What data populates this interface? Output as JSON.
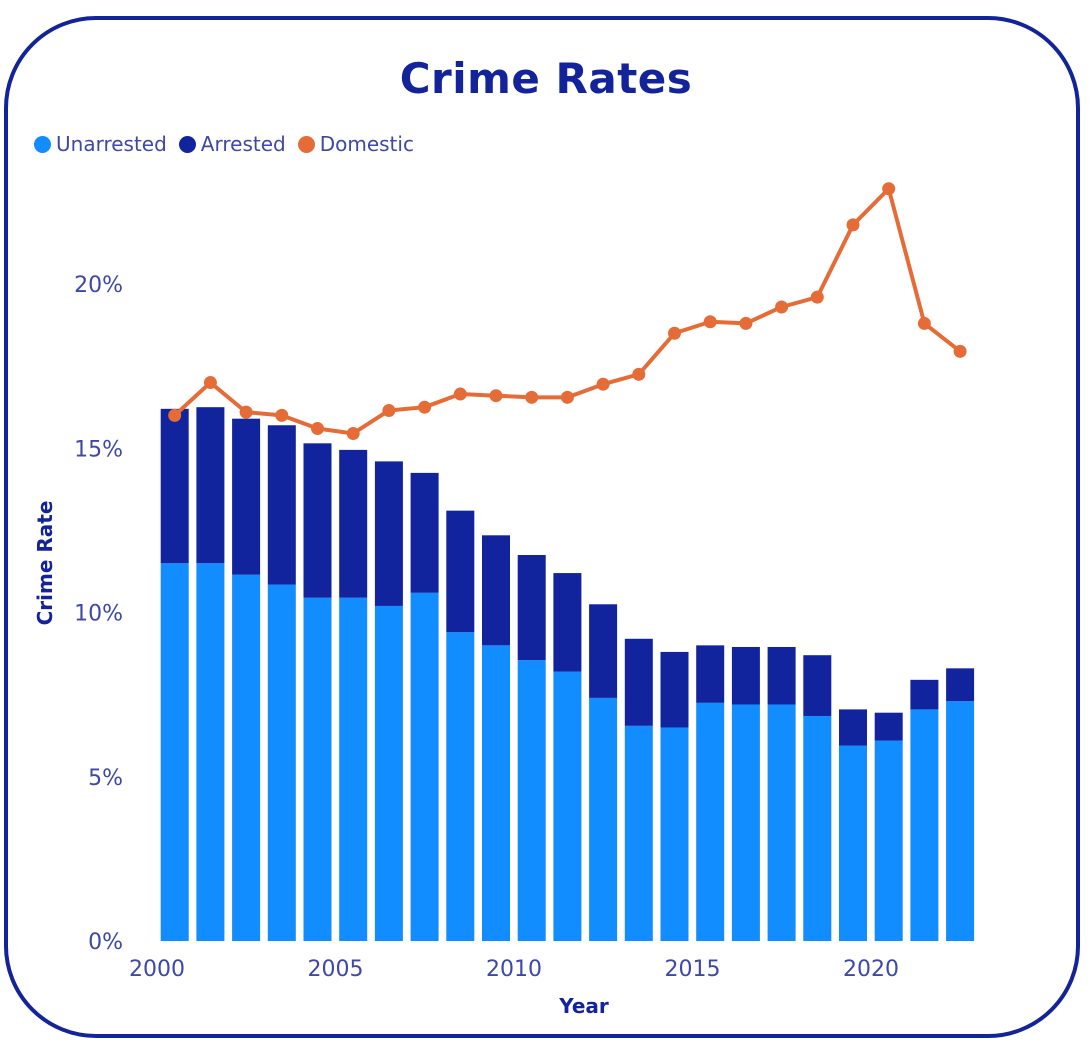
{
  "chart_data": {
    "type": "bar",
    "title": "Crime Rates",
    "xlabel": "Year",
    "ylabel": "Crime Rate",
    "x": [
      2001,
      2002,
      2003,
      2004,
      2005,
      2006,
      2007,
      2008,
      2009,
      2010,
      2011,
      2012,
      2013,
      2014,
      2015,
      2016,
      2017,
      2018,
      2019,
      2020,
      2021,
      2022,
      2023
    ],
    "series": [
      {
        "name": "Unarrested",
        "kind": "bar",
        "stack": "total",
        "color": "#118dff",
        "values": [
          11.5,
          11.5,
          11.15,
          10.85,
          10.45,
          10.45,
          10.2,
          10.6,
          9.4,
          9.0,
          8.55,
          8.2,
          7.4,
          6.55,
          6.5,
          7.25,
          7.2,
          7.2,
          6.85,
          5.95,
          6.1,
          7.05,
          7.3
        ]
      },
      {
        "name": "Arrested",
        "kind": "bar",
        "stack": "total",
        "color": "#12239e",
        "values": [
          4.7,
          4.75,
          4.75,
          4.85,
          4.7,
          4.5,
          4.4,
          3.65,
          3.7,
          3.35,
          3.2,
          3.0,
          2.85,
          2.65,
          2.3,
          1.75,
          1.75,
          1.75,
          1.85,
          1.1,
          0.85,
          0.9,
          1.0
        ]
      },
      {
        "name": "Domestic",
        "kind": "line",
        "color": "#e66c37",
        "values": [
          16.0,
          17.0,
          16.1,
          16.0,
          15.6,
          15.45,
          16.15,
          16.25,
          16.65,
          16.6,
          16.55,
          16.55,
          16.95,
          17.25,
          18.5,
          18.85,
          18.8,
          19.3,
          19.6,
          21.8,
          22.9,
          18.8,
          17.95
        ]
      }
    ],
    "ylim": [
      0,
      24
    ],
    "yticks": [
      0,
      5,
      10,
      15,
      20
    ],
    "ytick_labels": [
      "0%",
      "5%",
      "10%",
      "15%",
      "20%"
    ],
    "xlim": [
      2000,
      2023.6
    ],
    "xticks": [
      2000,
      2005,
      2010,
      2015,
      2020
    ],
    "xtick_labels": [
      "2000",
      "2005",
      "2010",
      "2015",
      "2020"
    ],
    "legend": "top-left",
    "grid": false
  }
}
